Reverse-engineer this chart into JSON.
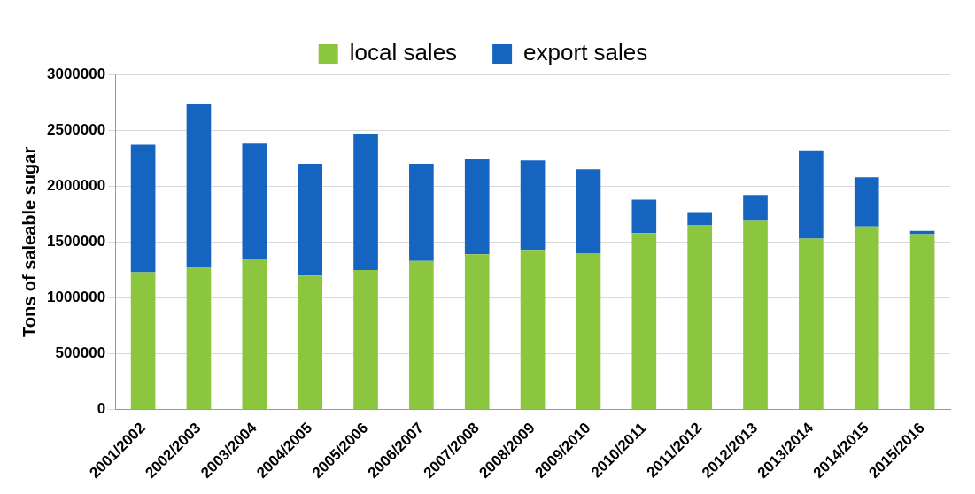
{
  "chart_data": {
    "type": "bar",
    "stacked": true,
    "ylabel": "Tons of saleable sugar",
    "categories": [
      "2001/2002",
      "2002/2003",
      "2003/2004",
      "2004/2005",
      "2005/2006",
      "2006/2007",
      "2007/2008",
      "2008/2009",
      "2009/2010",
      "2010/2011",
      "2011/2012",
      "2012/2013",
      "2013/2014",
      "2014/2015",
      "2015/2016"
    ],
    "series": [
      {
        "name": "local sales",
        "color": "#8cc63f",
        "values": [
          1230000,
          1270000,
          1350000,
          1200000,
          1250000,
          1330000,
          1390000,
          1430000,
          1400000,
          1580000,
          1650000,
          1690000,
          1530000,
          1640000,
          1570000
        ]
      },
      {
        "name": "export sales",
        "color": "#1565c0",
        "values": [
          1140000,
          1460000,
          1030000,
          1000000,
          1220000,
          870000,
          850000,
          800000,
          750000,
          300000,
          110000,
          230000,
          790000,
          440000,
          30000
        ]
      }
    ],
    "ylim": [
      0,
      3000000
    ],
    "yticks": [
      0,
      500000,
      1000000,
      1500000,
      2000000,
      2500000,
      3000000
    ],
    "grid": "y",
    "legend": "top"
  }
}
